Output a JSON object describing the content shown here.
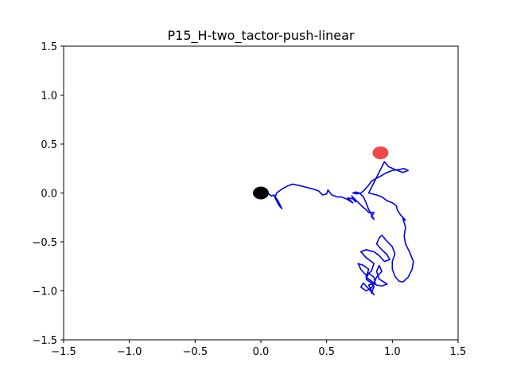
{
  "chart_data": {
    "type": "line",
    "title": "P15_H-two_tactor-push-linear",
    "xlabel": "",
    "ylabel": "",
    "xlim": [
      -1.5,
      1.5
    ],
    "ylim": [
      -1.5,
      1.5
    ],
    "xticks": [
      -1.5,
      -1.0,
      -0.5,
      0.0,
      0.5,
      1.0,
      1.5
    ],
    "yticks": [
      -1.5,
      -1.0,
      -0.5,
      0.0,
      0.5,
      1.0,
      1.5
    ],
    "xtick_labels": [
      "−1.5",
      "−1.0",
      "−0.5",
      "0.0",
      "0.5",
      "1.0",
      "1.5"
    ],
    "ytick_labels": [
      "−1.5",
      "−1.0",
      "−0.5",
      "0.0",
      "0.5",
      "1.0",
      "1.5"
    ],
    "grid": false,
    "line_color": "#0000ee",
    "start_marker": {
      "x": 0.0,
      "y": 0.0,
      "color": "#000000"
    },
    "target_marker": {
      "x": 0.91,
      "y": 0.41,
      "color": "#ee3333"
    },
    "trajectory": [
      [
        0.04,
        0.01
      ],
      [
        0.08,
        -0.03
      ],
      [
        0.1,
        -0.02
      ],
      [
        0.12,
        -0.08
      ],
      [
        0.14,
        -0.13
      ],
      [
        0.16,
        -0.16
      ],
      [
        0.13,
        -0.08
      ],
      [
        0.11,
        -0.04
      ],
      [
        0.12,
        0.0
      ],
      [
        0.16,
        0.04
      ],
      [
        0.2,
        0.07
      ],
      [
        0.24,
        0.09
      ],
      [
        0.28,
        0.08
      ],
      [
        0.34,
        0.06
      ],
      [
        0.4,
        0.04
      ],
      [
        0.44,
        0.02
      ],
      [
        0.47,
        -0.02
      ],
      [
        0.5,
        -0.01
      ],
      [
        0.51,
        0.03
      ],
      [
        0.54,
        -0.02
      ],
      [
        0.58,
        -0.04
      ],
      [
        0.61,
        -0.04
      ],
      [
        0.65,
        -0.06
      ],
      [
        0.7,
        -0.1
      ],
      [
        0.66,
        -0.05
      ],
      [
        0.7,
        -0.06
      ],
      [
        0.72,
        -0.09
      ],
      [
        0.69,
        -0.03
      ],
      [
        0.72,
        -0.07
      ],
      [
        0.78,
        -0.15
      ],
      [
        0.8,
        -0.17
      ],
      [
        0.82,
        -0.2
      ],
      [
        0.86,
        -0.2
      ],
      [
        0.84,
        -0.24
      ],
      [
        0.86,
        -0.27
      ],
      [
        0.84,
        -0.22
      ],
      [
        0.82,
        -0.17
      ],
      [
        0.8,
        -0.1
      ],
      [
        0.78,
        -0.04
      ],
      [
        0.75,
        0.0
      ],
      [
        0.72,
        0.01
      ],
      [
        0.7,
        0.0
      ],
      [
        0.73,
        -0.01
      ],
      [
        0.76,
        0.0
      ],
      [
        0.78,
        0.02
      ],
      [
        0.8,
        0.05
      ],
      [
        0.82,
        0.08
      ],
      [
        0.84,
        0.12
      ],
      [
        0.88,
        0.15
      ],
      [
        0.92,
        0.18
      ],
      [
        0.96,
        0.21
      ],
      [
        1.0,
        0.23
      ],
      [
        1.05,
        0.24
      ],
      [
        1.09,
        0.25
      ],
      [
        1.12,
        0.23
      ],
      [
        1.08,
        0.21
      ],
      [
        1.02,
        0.24
      ],
      [
        0.97,
        0.27
      ],
      [
        0.94,
        0.32
      ],
      [
        0.82,
        0.0
      ],
      [
        0.88,
        -0.02
      ],
      [
        0.92,
        -0.04
      ],
      [
        0.96,
        -0.08
      ],
      [
        1.0,
        -0.1
      ],
      [
        1.03,
        -0.13
      ],
      [
        1.04,
        -0.18
      ],
      [
        1.06,
        -0.22
      ],
      [
        1.08,
        -0.25
      ],
      [
        1.1,
        -0.28
      ],
      [
        1.08,
        -0.26
      ],
      [
        1.1,
        -0.35
      ],
      [
        1.09,
        -0.44
      ],
      [
        1.1,
        -0.52
      ],
      [
        1.13,
        -0.6
      ],
      [
        1.16,
        -0.7
      ],
      [
        1.15,
        -0.78
      ],
      [
        1.12,
        -0.86
      ],
      [
        1.08,
        -0.91
      ],
      [
        1.05,
        -0.9
      ],
      [
        1.02,
        -0.85
      ],
      [
        1.0,
        -0.78
      ],
      [
        1.0,
        -0.7
      ],
      [
        1.02,
        -0.62
      ],
      [
        1.0,
        -0.55
      ],
      [
        0.95,
        -0.48
      ],
      [
        0.92,
        -0.43
      ],
      [
        0.9,
        -0.46
      ],
      [
        0.88,
        -0.52
      ],
      [
        0.92,
        -0.58
      ],
      [
        0.96,
        -0.63
      ],
      [
        0.98,
        -0.68
      ],
      [
        0.94,
        -0.7
      ],
      [
        0.9,
        -0.64
      ],
      [
        0.86,
        -0.6
      ],
      [
        0.8,
        -0.58
      ],
      [
        0.76,
        -0.6
      ],
      [
        0.8,
        -0.66
      ],
      [
        0.86,
        -0.72
      ],
      [
        0.84,
        -0.8
      ],
      [
        0.8,
        -0.84
      ],
      [
        0.76,
        -0.78
      ],
      [
        0.74,
        -0.72
      ],
      [
        0.78,
        -0.74
      ],
      [
        0.82,
        -0.78
      ],
      [
        0.8,
        -0.86
      ],
      [
        0.84,
        -0.9
      ],
      [
        0.88,
        -0.94
      ],
      [
        0.92,
        -0.95
      ],
      [
        0.96,
        -0.93
      ],
      [
        0.9,
        -0.88
      ],
      [
        0.88,
        -0.8
      ],
      [
        0.9,
        -0.74
      ],
      [
        0.92,
        -0.8
      ],
      [
        0.88,
        -0.86
      ],
      [
        0.86,
        -0.92
      ],
      [
        0.82,
        -0.94
      ],
      [
        0.84,
        -1.0
      ],
      [
        0.86,
        -1.04
      ],
      [
        0.82,
        -0.98
      ],
      [
        0.78,
        -0.92
      ],
      [
        0.76,
        -0.96
      ],
      [
        0.8,
        -1.0
      ],
      [
        0.84,
        -0.97
      ],
      [
        0.87,
        -0.92
      ],
      [
        0.86,
        -0.86
      ],
      [
        0.82,
        -0.82
      ],
      [
        0.8,
        -0.88
      ],
      [
        0.84,
        -0.92
      ],
      [
        0.86,
        -0.96
      ],
      [
        0.84,
        -1.02
      ]
    ]
  }
}
